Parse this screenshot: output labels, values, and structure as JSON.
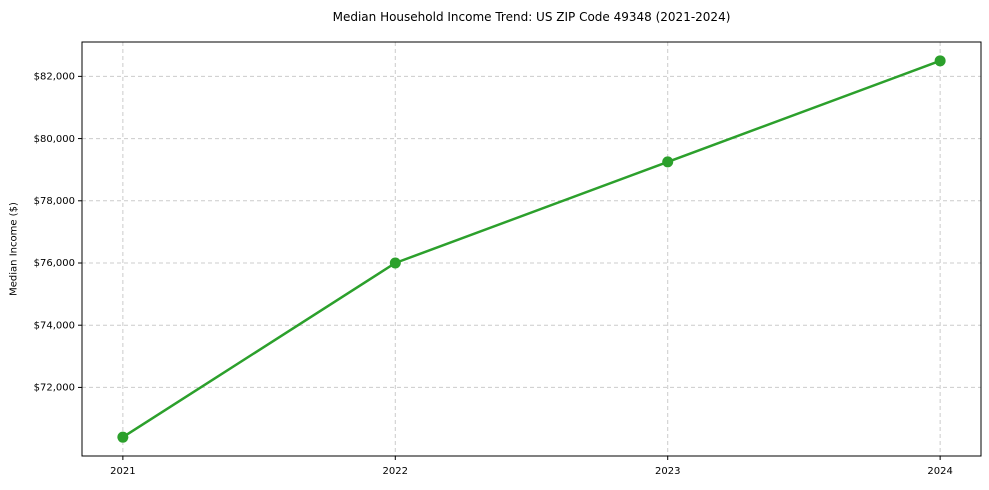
{
  "chart_data": {
    "type": "line",
    "title": "Median Household Income Trend: US ZIP Code 49348 (2021-2024)",
    "xlabel": "",
    "ylabel": "Median Income ($)",
    "categories": [
      "2021",
      "2022",
      "2023",
      "2024"
    ],
    "series": [
      {
        "name": "Median Household Income",
        "values": [
          70400,
          76000,
          79250,
          82500
        ],
        "color": "#2ca02c",
        "marker": "circle",
        "line_width": 2.5,
        "marker_diameter": 11
      }
    ],
    "ylim": [
      69795,
      83105
    ],
    "yticks": [
      72000,
      74000,
      76000,
      78000,
      80000,
      82000
    ],
    "ytick_labels": [
      "$72,000",
      "$74,000",
      "$76,000",
      "$78,000",
      "$80,000",
      "$82,000"
    ],
    "grid": true,
    "grid_style": "dashed",
    "grid_color": "#cccccc",
    "legend": false,
    "background": "#ffffff",
    "spine_color": "#000000",
    "text_color": "#000000"
  }
}
